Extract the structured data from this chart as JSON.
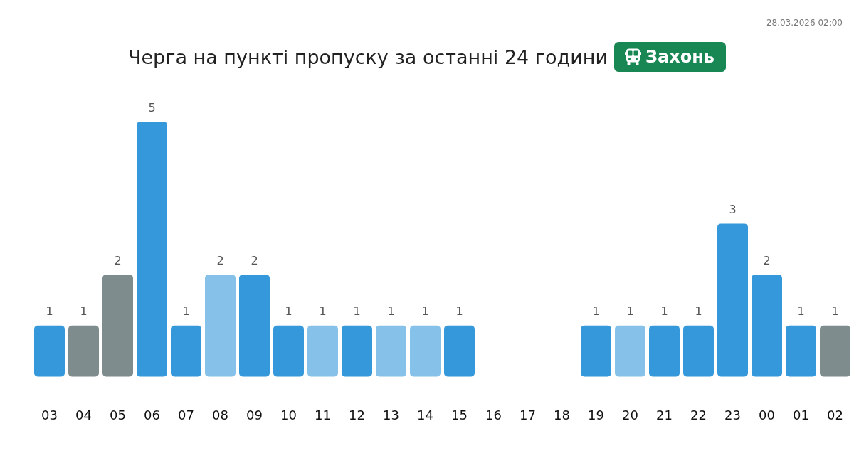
{
  "chart_data": {
    "type": "bar",
    "title": "Черга на пункті пропуску за останні 24 години",
    "subtitle": "Захонь",
    "annotations": [
      "28.03.2026 02:00"
    ],
    "categories": [
      "03",
      "04",
      "05",
      "06",
      "07",
      "08",
      "09",
      "10",
      "11",
      "12",
      "13",
      "14",
      "15",
      "16",
      "17",
      "18",
      "19",
      "20",
      "21",
      "22",
      "23",
      "00",
      "01",
      "02"
    ],
    "values": [
      1,
      1,
      2,
      5,
      1,
      2,
      2,
      1,
      1,
      1,
      1,
      1,
      1,
      null,
      null,
      null,
      1,
      1,
      1,
      1,
      3,
      2,
      1,
      1
    ],
    "colors": [
      "#3498db",
      "#7f8c8d",
      "#7f8c8d",
      "#3498db",
      "#3498db",
      "#85c1e9",
      "#3498db",
      "#3498db",
      "#85c1e9",
      "#3498db",
      "#85c1e9",
      "#85c1e9",
      "#3498db",
      null,
      null,
      null,
      "#3498db",
      "#85c1e9",
      "#3498db",
      "#3498db",
      "#3498db",
      "#3498db",
      "#3498db",
      "#7f8c8d"
    ],
    "data_labels": true
  }
}
